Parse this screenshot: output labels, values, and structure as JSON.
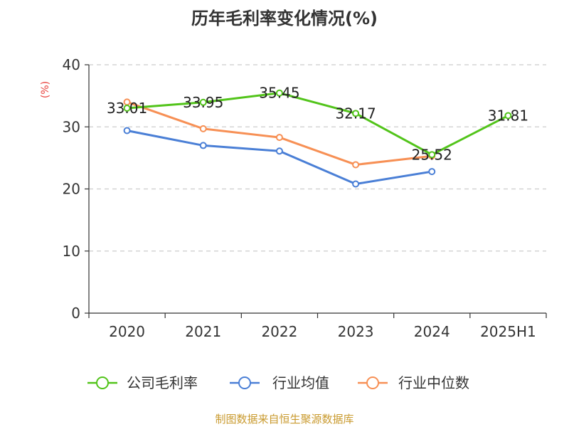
{
  "chart_data": {
    "type": "line",
    "title": "历年毛利率变化情况(%)",
    "y_unit": "(%)",
    "categories": [
      "2020",
      "2021",
      "2022",
      "2023",
      "2024",
      "2025H1"
    ],
    "ylim": [
      0,
      40
    ],
    "yticks": [
      "0",
      "10",
      "20",
      "30",
      "40"
    ],
    "grid": true,
    "legend_position": "bottom",
    "series": [
      {
        "name": "公司毛利率",
        "color": "#52c41a",
        "values": [
          33.01,
          33.95,
          35.45,
          32.17,
          25.52,
          31.81
        ],
        "labels": [
          "33.01",
          "33.95",
          "35.45",
          "32.17",
          "25.52",
          "31.81"
        ]
      },
      {
        "name": "行业均值",
        "color": "#4a7fd6",
        "values": [
          29.4,
          27.0,
          26.1,
          20.8,
          22.8,
          null
        ]
      },
      {
        "name": "行业中位数",
        "color": "#f79055",
        "values": [
          34.0,
          29.7,
          28.3,
          23.9,
          25.3,
          null
        ]
      }
    ]
  },
  "source": "制图数据来自恒生聚源数据库"
}
